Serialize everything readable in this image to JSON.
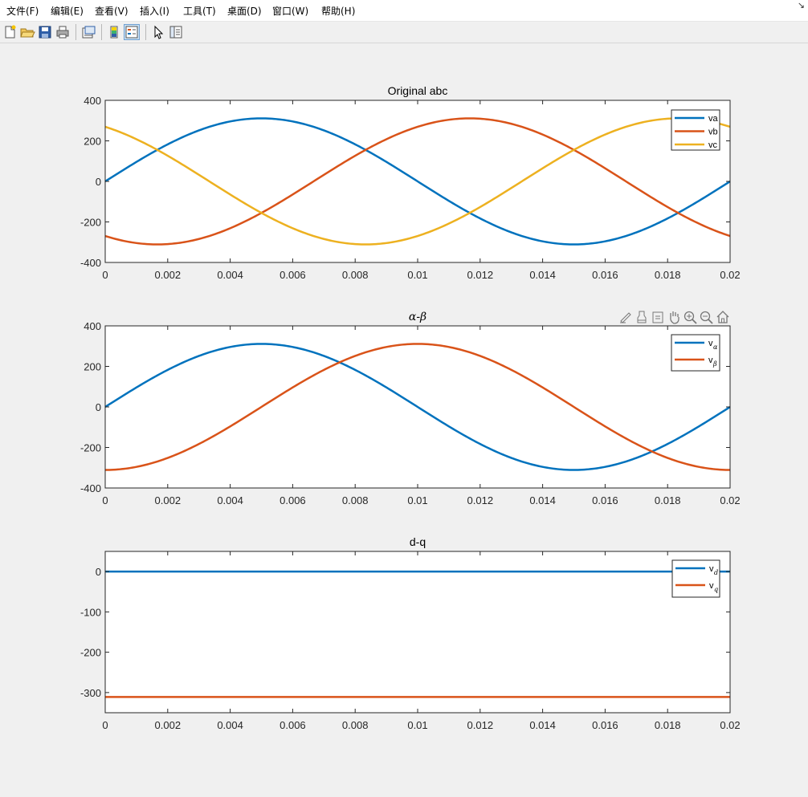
{
  "menu": [
    "文件(F)",
    "编辑(E)",
    "查看(V)",
    "插入(I)",
    "工具(T)",
    "桌面(D)",
    "窗口(W)",
    "帮助(H)"
  ],
  "dock_arrow": "↘",
  "toolbar_icons": [
    "new-figure-icon",
    "open-file-icon",
    "save-icon",
    "print-icon",
    "print-preview-icon",
    "colorbar-icon",
    "legend-icon",
    "select-pointer-icon",
    "property-inspector-icon"
  ],
  "axes_toolbar_icons": [
    "edit-plot-icon",
    "brush-icon",
    "data-tips-icon",
    "pan-hand-icon",
    "zoom-in-icon",
    "zoom-out-icon",
    "restore-view-icon"
  ],
  "colors": {
    "series1": "#0072BD",
    "series2": "#D95319",
    "series3": "#EDB120"
  },
  "chart_data": [
    {
      "type": "line",
      "title": "Original abc",
      "xlim": [
        0,
        0.02
      ],
      "ylim": [
        -400,
        400
      ],
      "xticks": [
        "0",
        "0.002",
        "0.004",
        "0.006",
        "0.008",
        "0.01",
        "0.012",
        "0.014",
        "0.016",
        "0.018",
        "0.02"
      ],
      "yticks": [
        "400",
        "200",
        "0",
        "-200",
        "-400"
      ],
      "legend_position": "top-right",
      "series": [
        {
          "name": "va",
          "amplitude": 311,
          "frequency_hz": 50,
          "phase_deg": 0
        },
        {
          "name": "vb",
          "amplitude": 311,
          "frequency_hz": 50,
          "phase_deg": -120
        },
        {
          "name": "vc",
          "amplitude": 311,
          "frequency_hz": 50,
          "phase_deg": 120
        }
      ]
    },
    {
      "type": "line",
      "title": "α-β",
      "xlim": [
        0,
        0.02
      ],
      "ylim": [
        -400,
        400
      ],
      "xticks": [
        "0",
        "0.002",
        "0.004",
        "0.006",
        "0.008",
        "0.01",
        "0.012",
        "0.014",
        "0.016",
        "0.018",
        "0.02"
      ],
      "yticks": [
        "400",
        "200",
        "0",
        "-200",
        "-400"
      ],
      "legend_position": "top-right",
      "series": [
        {
          "name": "v",
          "sub": "α",
          "amplitude": 311,
          "frequency_hz": 50,
          "phase_deg": 0
        },
        {
          "name": "v",
          "sub": "β",
          "amplitude": 311,
          "frequency_hz": 50,
          "phase_deg": -90
        }
      ]
    },
    {
      "type": "line",
      "title": "d-q",
      "xlim": [
        0,
        0.02
      ],
      "ylim": [
        -350,
        50
      ],
      "xticks": [
        "0",
        "0.002",
        "0.004",
        "0.006",
        "0.008",
        "0.01",
        "0.012",
        "0.014",
        "0.016",
        "0.018",
        "0.02"
      ],
      "yticks": [
        "0",
        "-100",
        "-200",
        "-300"
      ],
      "legend_position": "top-right",
      "series": [
        {
          "name": "v",
          "sub": "d",
          "constant": 0
        },
        {
          "name": "v",
          "sub": "q",
          "constant": -311
        }
      ]
    }
  ]
}
